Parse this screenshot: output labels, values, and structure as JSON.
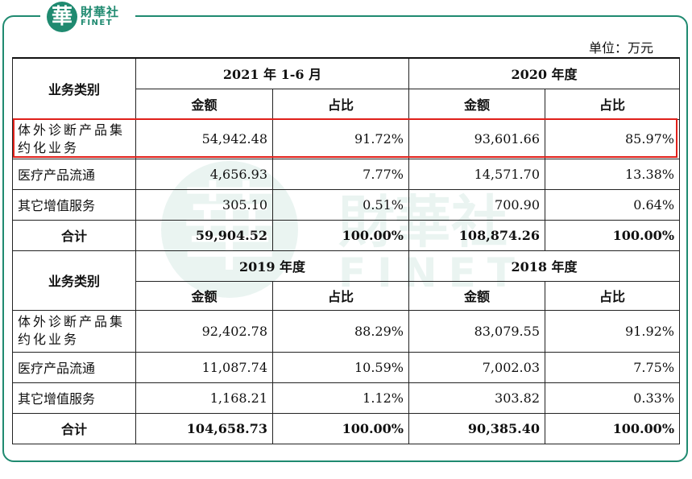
{
  "logo": {
    "glyph": "華",
    "cn": "財華社",
    "en": "FINET"
  },
  "unit_label": "单位：万元",
  "watermark": {
    "cn": "財華社",
    "en": "FINET"
  },
  "colors": {
    "brand": "#1f8a70",
    "highlight": "#e0201a"
  },
  "table1": {
    "category_header": "业务类别",
    "periods": [
      "2021 年 1-6 月",
      "2020 年度"
    ],
    "sub_headers": [
      "金额",
      "占比",
      "金额",
      "占比"
    ],
    "rows": [
      {
        "label": "体外诊断产品集约化业务",
        "cells": [
          "54,942.48",
          "91.72%",
          "93,601.66",
          "85.97%"
        ]
      },
      {
        "label": "医疗产品流通",
        "cells": [
          "4,656.93",
          "7.77%",
          "14,571.70",
          "13.38%"
        ]
      },
      {
        "label": "其它增值服务",
        "cells": [
          "305.10",
          "0.51%",
          "700.90",
          "0.64%"
        ]
      },
      {
        "label": "合计",
        "cells": [
          "59,904.52",
          "100.00%",
          "108,874.26",
          "100.00%"
        ]
      }
    ]
  },
  "table2": {
    "category_header": "业务类别",
    "periods": [
      "2019 年度",
      "2018 年度"
    ],
    "sub_headers": [
      "金额",
      "占比",
      "金额",
      "占比"
    ],
    "rows": [
      {
        "label": "体外诊断产品集约化业务",
        "cells": [
          "92,402.78",
          "88.29%",
          "83,079.55",
          "91.92%"
        ]
      },
      {
        "label": "医疗产品流通",
        "cells": [
          "11,087.74",
          "10.59%",
          "7,002.03",
          "7.75%"
        ]
      },
      {
        "label": "其它增值服务",
        "cells": [
          "1,168.21",
          "1.12%",
          "303.82",
          "0.33%"
        ]
      },
      {
        "label": "合计",
        "cells": [
          "104,658.73",
          "100.00%",
          "90,385.40",
          "100.00%"
        ]
      }
    ]
  }
}
